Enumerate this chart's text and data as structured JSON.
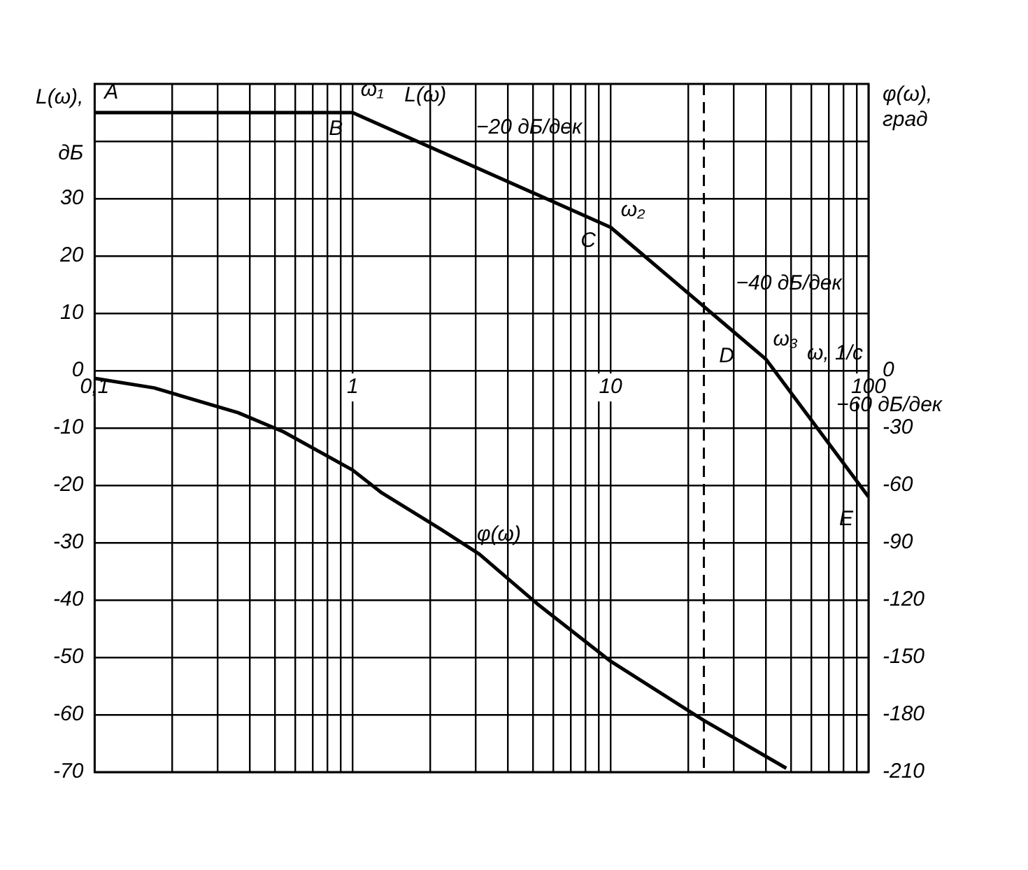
{
  "chart_data": {
    "type": "line",
    "xlabel": "ω, 1/с",
    "ylabel": "L(ω), дБ",
    "y2label": "φ(ω), град",
    "log": "x",
    "grid": true,
    "legend": false,
    "marker": "none",
    "line_style": "solid",
    "xlim": [
      0.1,
      100
    ],
    "xticks": [
      {
        "value": 0.1,
        "label": "0,1"
      },
      {
        "value": 0.2,
        "label": null
      },
      {
        "value": 0.3,
        "label": null
      },
      {
        "value": 0.4,
        "label": null
      },
      {
        "value": 0.5,
        "label": null
      },
      {
        "value": 0.6,
        "label": null
      },
      {
        "value": 0.7,
        "label": null
      },
      {
        "value": 0.8,
        "label": null
      },
      {
        "value": 0.9,
        "label": null
      },
      1,
      {
        "value": 2,
        "label": null
      },
      {
        "value": 3,
        "label": null
      },
      {
        "value": 4,
        "label": null
      },
      {
        "value": 5,
        "label": null
      },
      {
        "value": 6,
        "label": null
      },
      {
        "value": 7,
        "label": null
      },
      {
        "value": 8,
        "label": null
      },
      {
        "value": 9,
        "label": null
      },
      10,
      {
        "value": 20,
        "label": null
      },
      {
        "value": 30,
        "label": null
      },
      {
        "value": 40,
        "label": null
      },
      {
        "value": 50,
        "label": null
      },
      {
        "value": 60,
        "label": null
      },
      {
        "value": 70,
        "label": null
      },
      {
        "value": 80,
        "label": null
      },
      {
        "value": 90,
        "label": null
      },
      100
    ],
    "ylim": [
      -70,
      50
    ],
    "yticks": [
      -70,
      -60,
      -50,
      -40,
      -30,
      -20,
      -10,
      0,
      10,
      20,
      30,
      {
        "value": 40,
        "label": null
      }
    ],
    "y2lim": [
      -210,
      150
    ],
    "y2ticks": [
      -210,
      -180,
      -150,
      -120,
      -90,
      -60,
      -30,
      0
    ],
    "series": [
      {
        "name": "L(ω)",
        "color": "#000000",
        "x": [
          0.1,
          1,
          10,
          40,
          100
        ],
        "values": [
          45,
          45,
          25,
          2,
          -22
        ]
      },
      {
        "name": "φ(ω)",
        "color": "#000000",
        "axis": "y2",
        "x": [
          0.1,
          0.17,
          0.36,
          0.54,
          1,
          1.3,
          2.2,
          3.1,
          5.2,
          10,
          23,
          48
        ],
        "values": [
          -4,
          -9,
          -22,
          -32,
          -52,
          -64,
          -83,
          -96,
          -122,
          -152,
          -183,
          -208
        ]
      }
    ],
    "ref_lines": [
      {
        "axis": "x",
        "value": 23,
        "line_style": "dashed"
      }
    ],
    "annotations": [
      {
        "text": "A",
        "x": 0.1,
        "y": 45
      },
      {
        "text": "B",
        "x": 1,
        "y": 45
      },
      {
        "text": "ω₁",
        "x": 1,
        "y": 45
      },
      {
        "text": "−20 дБ/дек",
        "x": 3.16,
        "y": 35
      },
      {
        "text": "C",
        "x": 10,
        "y": 25
      },
      {
        "text": "ω₂",
        "x": 10,
        "y": 25
      },
      {
        "text": "−40 дБ/дек",
        "x": 20,
        "y": 13
      },
      {
        "text": "D",
        "x": 40,
        "y": 2
      },
      {
        "text": "ω₃",
        "x": 40,
        "y": 2
      },
      {
        "text": "−60 дБ/дек",
        "x": 63,
        "y": -10
      },
      {
        "text": "E",
        "x": 100,
        "y": -22
      }
    ]
  }
}
